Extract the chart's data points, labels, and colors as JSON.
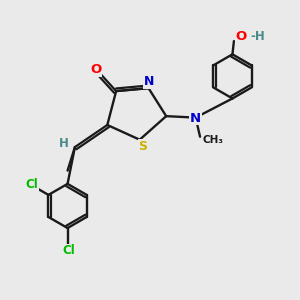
{
  "bg_color": "#eaeaea",
  "bond_color": "#1a1a1a",
  "atom_colors": {
    "O": "#ff0000",
    "N": "#0000cc",
    "S": "#c8b400",
    "Cl": "#00bb00",
    "H": "#4a8a8a",
    "C": "#1a1a1a"
  }
}
